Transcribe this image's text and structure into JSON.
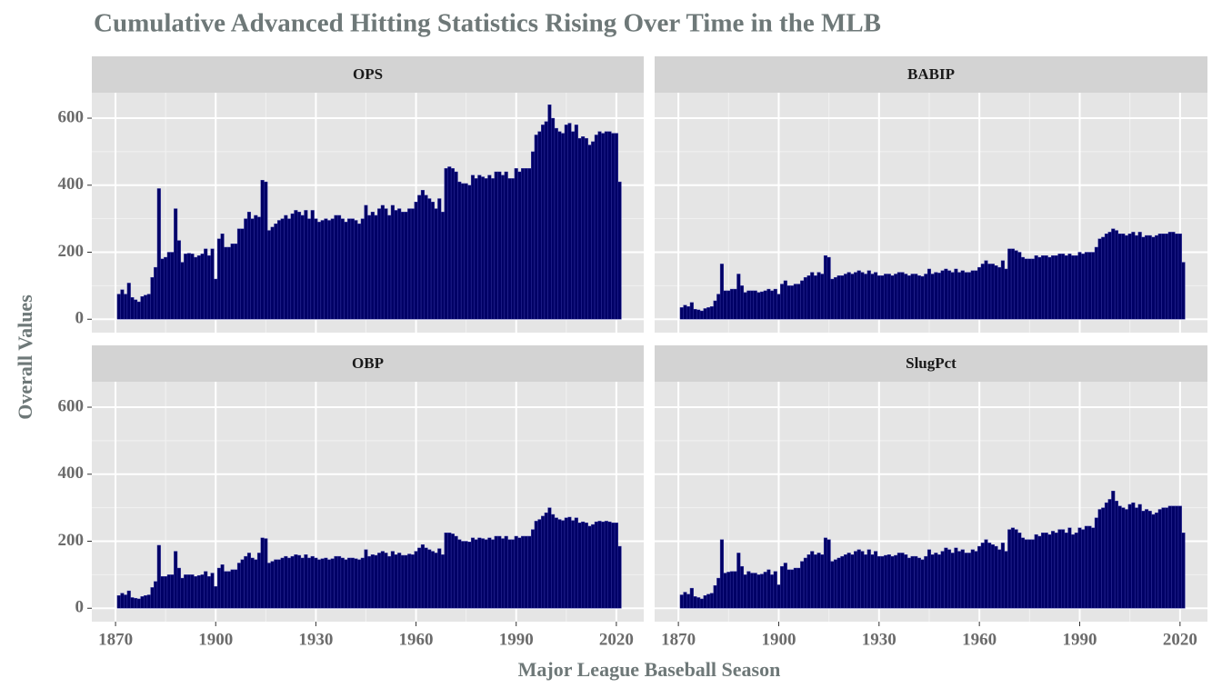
{
  "chart_data": {
    "type": "bar",
    "title": "Cumulative Advanced Hitting Statistics Rising Over Time in the MLB",
    "x_label": "Major League Baseball Season",
    "y_label": "Overall Values",
    "color": "#000066",
    "edgecolor": "#3b3ba8",
    "grid": true,
    "xlim": [
      1862.9,
      2028.2
    ],
    "xticks": [
      1870,
      1900,
      1930,
      1960,
      1990,
      2020
    ],
    "ylim": [
      -40,
      676
    ],
    "yticks": [
      0,
      200,
      400,
      600
    ],
    "x": [
      1871,
      1872,
      1873,
      1874,
      1875,
      1876,
      1877,
      1878,
      1879,
      1880,
      1881,
      1882,
      1883,
      1884,
      1885,
      1886,
      1887,
      1888,
      1889,
      1890,
      1891,
      1892,
      1893,
      1894,
      1895,
      1896,
      1897,
      1898,
      1899,
      1900,
      1901,
      1902,
      1903,
      1904,
      1905,
      1906,
      1907,
      1908,
      1909,
      1910,
      1911,
      1912,
      1913,
      1914,
      1915,
      1916,
      1917,
      1918,
      1919,
      1920,
      1921,
      1922,
      1923,
      1924,
      1925,
      1926,
      1927,
      1928,
      1929,
      1930,
      1931,
      1932,
      1933,
      1934,
      1935,
      1936,
      1937,
      1938,
      1939,
      1940,
      1941,
      1942,
      1943,
      1944,
      1945,
      1946,
      1947,
      1948,
      1949,
      1950,
      1951,
      1952,
      1953,
      1954,
      1955,
      1956,
      1957,
      1958,
      1959,
      1960,
      1961,
      1962,
      1963,
      1964,
      1965,
      1966,
      1967,
      1968,
      1969,
      1970,
      1971,
      1972,
      1973,
      1974,
      1975,
      1976,
      1977,
      1978,
      1979,
      1980,
      1981,
      1982,
      1983,
      1984,
      1985,
      1986,
      1987,
      1988,
      1989,
      1990,
      1991,
      1992,
      1993,
      1994,
      1995,
      1996,
      1997,
      1998,
      1999,
      2000,
      2001,
      2002,
      2003,
      2004,
      2005,
      2006,
      2007,
      2008,
      2009,
      2010,
      2011,
      2012,
      2013,
      2014,
      2015,
      2016,
      2017,
      2018,
      2019,
      2020,
      2021
    ],
    "facets": [
      {
        "title": "OPS",
        "values": [
          75,
          88,
          75,
          108,
          65,
          58,
          52,
          68,
          72,
          75,
          125,
          155,
          390,
          180,
          185,
          200,
          200,
          330,
          235,
          170,
          195,
          197,
          195,
          185,
          190,
          195,
          210,
          190,
          210,
          120,
          240,
          255,
          215,
          215,
          225,
          225,
          270,
          270,
          300,
          320,
          300,
          310,
          305,
          415,
          410,
          265,
          275,
          285,
          295,
          300,
          310,
          300,
          315,
          325,
          320,
          310,
          325,
          300,
          325,
          300,
          290,
          295,
          300,
          295,
          300,
          310,
          310,
          300,
          290,
          300,
          300,
          295,
          285,
          300,
          340,
          310,
          320,
          310,
          330,
          340,
          330,
          310,
          340,
          325,
          330,
          320,
          320,
          330,
          330,
          350,
          370,
          385,
          370,
          360,
          350,
          330,
          360,
          320,
          450,
          455,
          450,
          440,
          410,
          405,
          405,
          400,
          430,
          420,
          430,
          425,
          420,
          430,
          420,
          440,
          440,
          430,
          440,
          420,
          420,
          450,
          440,
          450,
          450,
          450,
          500,
          550,
          560,
          580,
          590,
          640,
          600,
          570,
          560,
          555,
          580,
          585,
          560,
          580,
          540,
          545,
          540,
          520,
          530,
          550,
          560,
          555,
          560,
          560,
          555,
          555,
          410
        ]
      },
      {
        "title": "BABIP",
        "values": [
          35,
          42,
          38,
          50,
          30,
          28,
          25,
          32,
          35,
          38,
          55,
          75,
          165,
          85,
          85,
          90,
          90,
          135,
          100,
          80,
          85,
          85,
          85,
          80,
          82,
          85,
          90,
          85,
          90,
          75,
          105,
          115,
          100,
          100,
          105,
          105,
          115,
          125,
          130,
          140,
          130,
          140,
          135,
          190,
          185,
          120,
          125,
          130,
          130,
          135,
          140,
          135,
          140,
          145,
          140,
          135,
          145,
          135,
          140,
          130,
          130,
          135,
          135,
          130,
          135,
          140,
          140,
          135,
          130,
          135,
          135,
          130,
          128,
          135,
          150,
          135,
          140,
          138,
          145,
          150,
          145,
          140,
          150,
          140,
          145,
          140,
          140,
          145,
          145,
          155,
          165,
          175,
          165,
          165,
          160,
          155,
          175,
          150,
          210,
          210,
          205,
          200,
          185,
          180,
          180,
          180,
          190,
          185,
          190,
          190,
          185,
          190,
          190,
          195,
          195,
          190,
          195,
          190,
          190,
          200,
          195,
          200,
          200,
          200,
          215,
          240,
          245,
          255,
          260,
          270,
          265,
          255,
          255,
          250,
          255,
          260,
          250,
          260,
          245,
          250,
          250,
          245,
          250,
          255,
          255,
          255,
          260,
          260,
          255,
          255,
          170
        ]
      },
      {
        "title": "OBP",
        "values": [
          38,
          45,
          40,
          52,
          32,
          30,
          28,
          35,
          38,
          40,
          62,
          80,
          188,
          95,
          95,
          100,
          100,
          170,
          120,
          90,
          100,
          100,
          100,
          95,
          98,
          100,
          110,
          95,
          105,
          65,
          120,
          130,
          110,
          110,
          115,
          115,
          135,
          145,
          155,
          165,
          150,
          145,
          165,
          210,
          208,
          135,
          140,
          145,
          145,
          150,
          155,
          150,
          155,
          160,
          158,
          150,
          160,
          150,
          155,
          150,
          145,
          148,
          150,
          145,
          148,
          155,
          155,
          150,
          145,
          150,
          150,
          148,
          145,
          150,
          175,
          155,
          160,
          158,
          165,
          170,
          165,
          155,
          170,
          160,
          165,
          158,
          158,
          162,
          160,
          170,
          180,
          190,
          180,
          175,
          170,
          165,
          178,
          160,
          225,
          225,
          222,
          215,
          205,
          200,
          200,
          198,
          210,
          205,
          210,
          208,
          205,
          210,
          205,
          215,
          215,
          208,
          215,
          205,
          205,
          215,
          210,
          215,
          215,
          215,
          235,
          260,
          265,
          275,
          285,
          300,
          280,
          270,
          265,
          262,
          270,
          272,
          262,
          270,
          255,
          258,
          255,
          245,
          250,
          258,
          260,
          258,
          260,
          258,
          255,
          255,
          185
        ]
      },
      {
        "title": "SlugPct",
        "values": [
          40,
          48,
          42,
          60,
          35,
          32,
          28,
          38,
          42,
          45,
          68,
          90,
          205,
          105,
          108,
          110,
          110,
          165,
          125,
          100,
          110,
          105,
          105,
          100,
          102,
          108,
          115,
          100,
          110,
          70,
          125,
          135,
          115,
          115,
          120,
          120,
          140,
          150,
          160,
          170,
          160,
          165,
          160,
          210,
          205,
          140,
          145,
          150,
          155,
          160,
          165,
          160,
          170,
          175,
          170,
          160,
          175,
          160,
          170,
          155,
          155,
          158,
          160,
          155,
          158,
          165,
          165,
          160,
          150,
          155,
          155,
          150,
          145,
          155,
          175,
          160,
          165,
          160,
          170,
          180,
          175,
          165,
          180,
          170,
          175,
          165,
          165,
          175,
          170,
          185,
          195,
          205,
          195,
          190,
          185,
          175,
          195,
          170,
          235,
          240,
          235,
          225,
          210,
          205,
          205,
          205,
          220,
          215,
          225,
          225,
          220,
          230,
          225,
          235,
          235,
          225,
          240,
          220,
          225,
          240,
          235,
          245,
          245,
          240,
          270,
          295,
          300,
          315,
          325,
          350,
          320,
          305,
          300,
          295,
          310,
          315,
          300,
          310,
          290,
          295,
          290,
          280,
          285,
          295,
          300,
          300,
          305,
          305,
          305,
          305,
          225
        ]
      }
    ]
  }
}
